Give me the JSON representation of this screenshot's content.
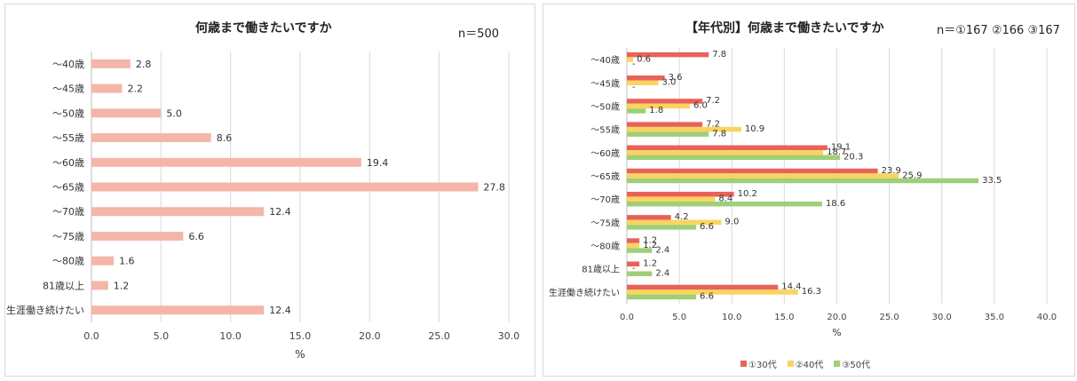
{
  "chart_data": [
    {
      "type": "bar",
      "orientation": "horizontal",
      "title": "何歳まで働きたいですか",
      "n_label": "n＝500",
      "categories": [
        "～40歳",
        "～45歳",
        "～50歳",
        "～55歳",
        "～60歳",
        "～65歳",
        "～70歳",
        "～75歳",
        "～80歳",
        "81歳以上",
        "生涯働き続けたい"
      ],
      "values": [
        2.8,
        2.2,
        5.0,
        8.6,
        19.4,
        27.8,
        12.4,
        6.6,
        1.6,
        1.2,
        12.4
      ],
      "value_labels": [
        "2.8",
        "2.2",
        "5.0",
        "8.6",
        "19.4",
        "27.8",
        "12.4",
        "6.6",
        "1.6",
        "1.2",
        "12.4"
      ],
      "xlabel": "%",
      "xlim": [
        0,
        30
      ],
      "xticks": [
        "0.0",
        "5.0",
        "10.0",
        "15.0",
        "20.0",
        "25.0",
        "30.0"
      ],
      "grid": true,
      "color": "#f4b6a8"
    },
    {
      "type": "bar",
      "orientation": "horizontal",
      "title": "【年代別】何歳まで働きたいですか",
      "n_label": "n＝①167 ②166 ③167",
      "categories": [
        "～40歳",
        "～45歳",
        "～50歳",
        "～55歳",
        "～60歳",
        "～65歳",
        "～70歳",
        "～75歳",
        "～80歳",
        "81歳以上",
        "生涯働き続けたい"
      ],
      "series": [
        {
          "name": "①30代",
          "color": "#e8625a",
          "values": [
            7.8,
            3.6,
            7.2,
            7.2,
            19.1,
            23.9,
            10.2,
            4.2,
            1.2,
            1.2,
            14.4
          ],
          "labels": [
            "7.8",
            "3.6",
            "7.2",
            "7.2",
            "19.1",
            "23.9",
            "10.2",
            "4.2",
            "1.2",
            "1.2",
            "14.4"
          ]
        },
        {
          "name": "②40代",
          "color": "#fad45e",
          "values": [
            0.6,
            3.0,
            6.0,
            10.9,
            18.7,
            25.9,
            8.4,
            9.0,
            1.2,
            0,
            16.3
          ],
          "labels": [
            "0.6",
            "3.0",
            "6.0",
            "10.9",
            "18.7",
            "25.9",
            "8.4",
            "9.0",
            "1.2",
            "-",
            "16.3"
          ]
        },
        {
          "name": "③50代",
          "color": "#9fcf78",
          "values": [
            0,
            0,
            1.8,
            7.8,
            20.3,
            33.5,
            18.6,
            6.6,
            2.4,
            2.4,
            6.6
          ],
          "labels": [
            "-",
            "-",
            "1.8",
            "7.8",
            "20.3",
            "33.5",
            "18.6",
            "6.6",
            "2.4",
            "2.4",
            "6.6"
          ]
        }
      ],
      "xlabel": "%",
      "xlim": [
        0,
        40
      ],
      "xticks": [
        "0.0",
        "5.0",
        "10.0",
        "15.0",
        "20.0",
        "25.0",
        "30.0",
        "35.0",
        "40.0"
      ],
      "grid": true,
      "legend": "bottom"
    }
  ]
}
